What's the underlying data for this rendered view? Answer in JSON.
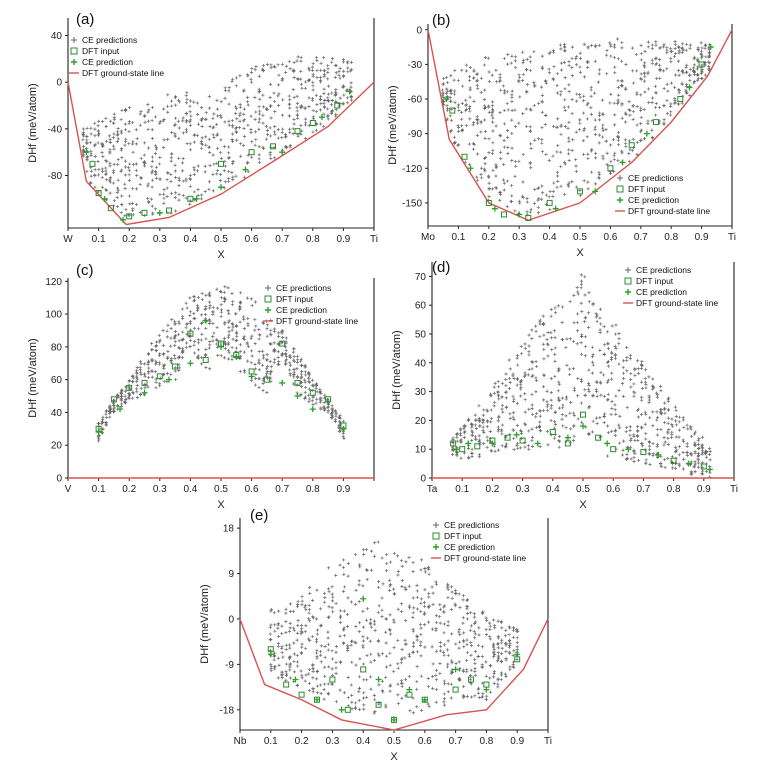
{
  "legend_labels": {
    "predictions": "CE predictions",
    "dft": "DFT input",
    "prediction": "CE prediction",
    "groundstate": "DFT ground-state line"
  },
  "colors": {
    "predictions": "#666666",
    "dft": "#2e8b2e",
    "prediction": "#27a327",
    "groundstate": "#d9534f"
  },
  "chart_data": [
    {
      "type": "scatter",
      "panel_label": "(a)",
      "xlabel": "X",
      "ylabel": "DHf (meV/atom)",
      "xlim": [
        0,
        1
      ],
      "ylim": [
        -125,
        55
      ],
      "x_ticks": [
        "W",
        "0.1",
        "0.2",
        "0.3",
        "0.4",
        "0.5",
        "0.6",
        "0.7",
        "0.8",
        "0.9",
        "Ti"
      ],
      "y_ticks": [
        40,
        0,
        -40,
        -80
      ],
      "legend_position": "top-left",
      "ground_state_line": {
        "x": [
          0,
          0.06,
          0.19,
          0.33,
          0.5,
          0.67,
          0.85,
          1
        ],
        "y": [
          0,
          -85,
          -122,
          -116,
          -96,
          -68,
          -38,
          0
        ]
      },
      "series": [
        {
          "name": "CE predictions",
          "role": "predictions",
          "envelope_top": {
            "x": [
              0.05,
              0.2,
              0.4,
              0.5,
              0.55,
              0.7,
              0.85,
              0.93
            ],
            "y": [
              -40,
              -20,
              -5,
              -10,
              12,
              22,
              22,
              18
            ]
          }
        },
        {
          "name": "DFT input",
          "role": "dft",
          "x": [
            0.08,
            0.1,
            0.14,
            0.2,
            0.25,
            0.33,
            0.4,
            0.5,
            0.6,
            0.67,
            0.75,
            0.8,
            0.88
          ],
          "y": [
            -70,
            -95,
            -108,
            -115,
            -112,
            -110,
            -100,
            -70,
            -60,
            -55,
            -42,
            -35,
            -20
          ]
        },
        {
          "name": "CE prediction",
          "role": "prediction",
          "x": [
            0.06,
            0.12,
            0.18,
            0.3,
            0.42,
            0.5,
            0.58,
            0.7,
            0.83,
            0.92
          ],
          "y": [
            -60,
            -100,
            -118,
            -112,
            -100,
            -90,
            -75,
            -60,
            -30,
            -8
          ]
        }
      ]
    },
    {
      "type": "scatter",
      "panel_label": "(b)",
      "xlabel": "X",
      "ylabel": "DHf (meV/atom)",
      "xlim": [
        0,
        1
      ],
      "ylim": [
        -170,
        5
      ],
      "x_ticks": [
        "Mo",
        "0.1",
        "0.2",
        "0.3",
        "0.4",
        "0.5",
        "0.6",
        "0.7",
        "0.8",
        "0.9",
        "Ti"
      ],
      "y_ticks": [
        0,
        -30,
        -60,
        -90,
        -120,
        -150
      ],
      "legend_position": "bottom-right",
      "ground_state_line": {
        "x": [
          0,
          0.07,
          0.2,
          0.33,
          0.5,
          0.67,
          0.8,
          0.92,
          1
        ],
        "y": [
          0,
          -95,
          -150,
          -165,
          -150,
          -115,
          -80,
          -40,
          0
        ]
      },
      "series": [
        {
          "name": "CE predictions",
          "role": "predictions",
          "envelope_top": {
            "x": [
              0.05,
              0.15,
              0.3,
              0.45,
              0.55,
              0.7,
              0.85,
              0.93
            ],
            "y": [
              -40,
              -25,
              -20,
              -12,
              -8,
              -8,
              -10,
              -12
            ]
          }
        },
        {
          "name": "DFT input",
          "role": "dft",
          "x": [
            0.08,
            0.12,
            0.2,
            0.25,
            0.33,
            0.4,
            0.5,
            0.6,
            0.67,
            0.75,
            0.83,
            0.9
          ],
          "y": [
            -70,
            -110,
            -150,
            -160,
            -163,
            -150,
            -140,
            -120,
            -100,
            -80,
            -60,
            -30
          ]
        },
        {
          "name": "CE prediction",
          "role": "prediction",
          "x": [
            0.06,
            0.14,
            0.22,
            0.3,
            0.42,
            0.55,
            0.64,
            0.72,
            0.86,
            0.93
          ],
          "y": [
            -60,
            -120,
            -155,
            -160,
            -155,
            -140,
            -115,
            -90,
            -50,
            -15
          ]
        }
      ]
    },
    {
      "type": "scatter",
      "panel_label": "(c)",
      "xlabel": "X",
      "ylabel": "DHf (meV/atom)",
      "xlim": [
        0,
        1
      ],
      "ylim": [
        0,
        122
      ],
      "x_ticks": [
        "V",
        "0.1",
        "0.2",
        "0.3",
        "0.4",
        "0.5",
        "0.6",
        "0.7",
        "0.8",
        "0.9",
        ""
      ],
      "y_ticks": [
        120,
        100,
        80,
        60,
        40,
        20,
        0
      ],
      "legend_position": "top-right",
      "ground_state_line": {
        "x": [
          0,
          1
        ],
        "y": [
          0,
          0
        ]
      },
      "series": [
        {
          "name": "CE predictions",
          "role": "predictions",
          "envelope_top": {
            "x": [
              0.1,
              0.2,
              0.3,
              0.4,
              0.5,
              0.6,
              0.7,
              0.8,
              0.9
            ],
            "y": [
              35,
              60,
              90,
              110,
              118,
              110,
              90,
              62,
              35
            ]
          }
        },
        {
          "name": "DFT input",
          "role": "dft",
          "x": [
            0.1,
            0.15,
            0.2,
            0.25,
            0.3,
            0.35,
            0.4,
            0.45,
            0.5,
            0.55,
            0.6,
            0.65,
            0.7,
            0.75,
            0.8,
            0.85,
            0.9
          ],
          "y": [
            30,
            48,
            55,
            58,
            62,
            68,
            88,
            72,
            82,
            75,
            65,
            60,
            82,
            58,
            52,
            48,
            32
          ]
        },
        {
          "name": "CE prediction",
          "role": "prediction",
          "x": [
            0.1,
            0.17,
            0.25,
            0.33,
            0.4,
            0.45,
            0.5,
            0.55,
            0.6,
            0.7,
            0.75,
            0.8,
            0.9
          ],
          "y": [
            28,
            42,
            52,
            60,
            70,
            96,
            80,
            74,
            62,
            58,
            50,
            42,
            30
          ]
        }
      ]
    },
    {
      "type": "scatter",
      "panel_label": "(d)",
      "xlabel": "X",
      "ylabel": "DHf (meV/atom)",
      "xlim": [
        0,
        1
      ],
      "ylim": [
        0,
        75
      ],
      "x_ticks": [
        "Ta",
        "0.1",
        "0.2",
        "0.3",
        "0.4",
        "0.5",
        "0.6",
        "0.7",
        "0.8",
        "0.9",
        "Ti"
      ],
      "y_ticks": [
        70,
        60,
        50,
        40,
        30,
        20,
        10,
        0
      ],
      "legend_position": "top-right",
      "ground_state_line": {
        "x": [
          0,
          1
        ],
        "y": [
          0,
          0
        ]
      },
      "series": [
        {
          "name": "CE predictions",
          "role": "predictions",
          "envelope_top": {
            "x": [
              0.07,
              0.2,
              0.3,
              0.4,
              0.45,
              0.5,
              0.55,
              0.6,
              0.7,
              0.8,
              0.93
            ],
            "y": [
              14,
              32,
              48,
              60,
              62,
              72,
              60,
              55,
              40,
              26,
              10
            ]
          }
        },
        {
          "name": "DFT input",
          "role": "dft",
          "x": [
            0.07,
            0.1,
            0.15,
            0.2,
            0.25,
            0.3,
            0.4,
            0.45,
            0.5,
            0.55,
            0.6,
            0.7,
            0.8,
            0.9
          ],
          "y": [
            12,
            10,
            11,
            13,
            14,
            13,
            16,
            12,
            22,
            14,
            10,
            9,
            6,
            4
          ]
        },
        {
          "name": "CE prediction",
          "role": "prediction",
          "x": [
            0.08,
            0.12,
            0.2,
            0.28,
            0.35,
            0.45,
            0.5,
            0.58,
            0.65,
            0.75,
            0.85,
            0.92
          ],
          "y": [
            10,
            12,
            12,
            15,
            12,
            14,
            18,
            12,
            10,
            8,
            5,
            3
          ]
        }
      ]
    },
    {
      "type": "scatter",
      "panel_label": "(e)",
      "xlabel": "X",
      "ylabel": "DHf (meV/atom)",
      "xlim": [
        0,
        1
      ],
      "ylim": [
        -22,
        20
      ],
      "x_ticks": [
        "Nb",
        "0.1",
        "0.2",
        "0.3",
        "0.4",
        "0.5",
        "0.6",
        "0.7",
        "0.8",
        "0.9",
        "Ti"
      ],
      "y_ticks": [
        18,
        9,
        0,
        -9,
        -18
      ],
      "legend_position": "top-right",
      "ground_state_line": {
        "x": [
          0,
          0.08,
          0.2,
          0.33,
          0.5,
          0.67,
          0.8,
          0.92,
          1
        ],
        "y": [
          0,
          -13,
          -16,
          -20,
          -22,
          -19,
          -18,
          -10,
          0
        ]
      },
      "series": [
        {
          "name": "CE predictions",
          "role": "predictions",
          "envelope_top": {
            "x": [
              0.1,
              0.2,
              0.3,
              0.4,
              0.45,
              0.5,
              0.55,
              0.6,
              0.7,
              0.8,
              0.9
            ],
            "y": [
              2,
              5,
              11,
              14,
              16,
              13,
              14,
              11,
              6,
              1,
              -2
            ]
          }
        },
        {
          "name": "DFT input",
          "role": "dft",
          "x": [
            0.1,
            0.15,
            0.2,
            0.25,
            0.3,
            0.35,
            0.4,
            0.45,
            0.5,
            0.55,
            0.6,
            0.7,
            0.75,
            0.8,
            0.9
          ],
          "y": [
            -6,
            -13,
            -15,
            -16,
            -12,
            -18,
            -10,
            -17,
            -20,
            -15,
            -16,
            -14,
            -12,
            -13,
            -8
          ]
        },
        {
          "name": "CE prediction",
          "role": "prediction",
          "x": [
            0.1,
            0.18,
            0.25,
            0.33,
            0.4,
            0.45,
            0.5,
            0.55,
            0.6,
            0.7,
            0.8,
            0.9
          ],
          "y": [
            -7,
            -12,
            -16,
            -18,
            4,
            -12,
            -20,
            -14,
            -16,
            -10,
            -14,
            -7
          ]
        }
      ]
    }
  ]
}
